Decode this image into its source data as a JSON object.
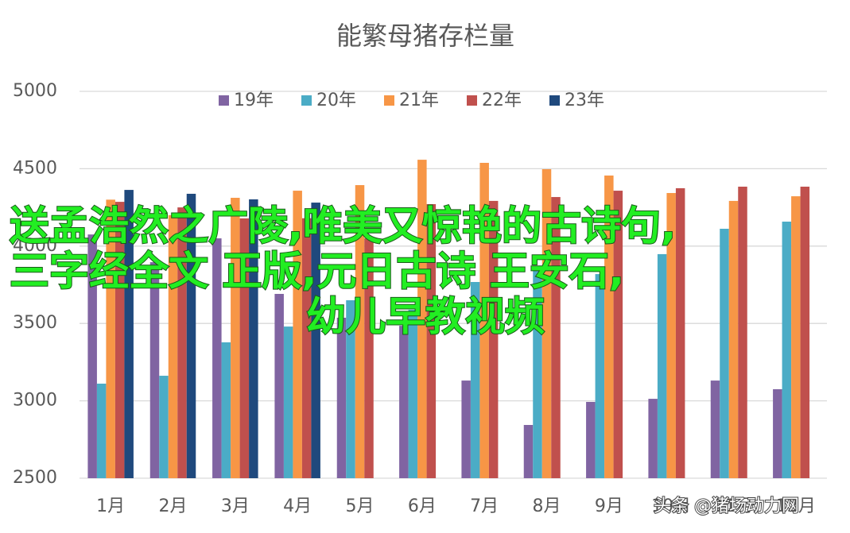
{
  "chart_data": {
    "type": "bar",
    "title": "能繁母猪存栏量",
    "categories": [
      "1月",
      "2月",
      "3月",
      "4月",
      "5月",
      "6月",
      "7月",
      "8月",
      "9月",
      "10月",
      "11月",
      "12月"
    ],
    "series": [
      {
        "name": "19年",
        "color": "#8064a2",
        "values": [
          4075,
          3896,
          4050,
          3691,
          3537,
          3485,
          3131,
          2844,
          2993,
          3013,
          3131,
          3075
        ]
      },
      {
        "name": "20年",
        "color": "#4bacc6",
        "values": [
          3111,
          3162,
          3378,
          3480,
          3650,
          3588,
          3768,
          3845,
          3819,
          3948,
          4112,
          4158
        ]
      },
      {
        "name": "21年",
        "color": "#f79646",
        "values": [
          4300,
          4200,
          4312,
          4358,
          4394,
          4558,
          4538,
          4497,
          4456,
          4343,
          4292,
          4322
        ]
      },
      {
        "name": "22年",
        "color": "#c0504d",
        "values": [
          4286,
          4250,
          4179,
          4180,
          4050,
          4271,
          4292,
          4317,
          4358,
          4374,
          4384,
          4384
        ]
      },
      {
        "name": "23年",
        "color": "#1f497d",
        "values": [
          4363,
          4338,
          4302,
          4281,
          null,
          null,
          null,
          null,
          null,
          null,
          null,
          null
        ]
      }
    ],
    "ylim": [
      2500,
      5000
    ],
    "yticks": [
      2500,
      3000,
      3500,
      4000,
      4500,
      5000
    ],
    "grid": true,
    "legend": "top"
  },
  "overlay": {
    "lines": [
      "送孟浩然之广陵,唯美又惊艳的古诗句,",
      "三字经全文 正版,元日古诗 王安石,",
      "幼儿早教视频"
    ]
  },
  "watermark": "头条 @猪场动力网"
}
